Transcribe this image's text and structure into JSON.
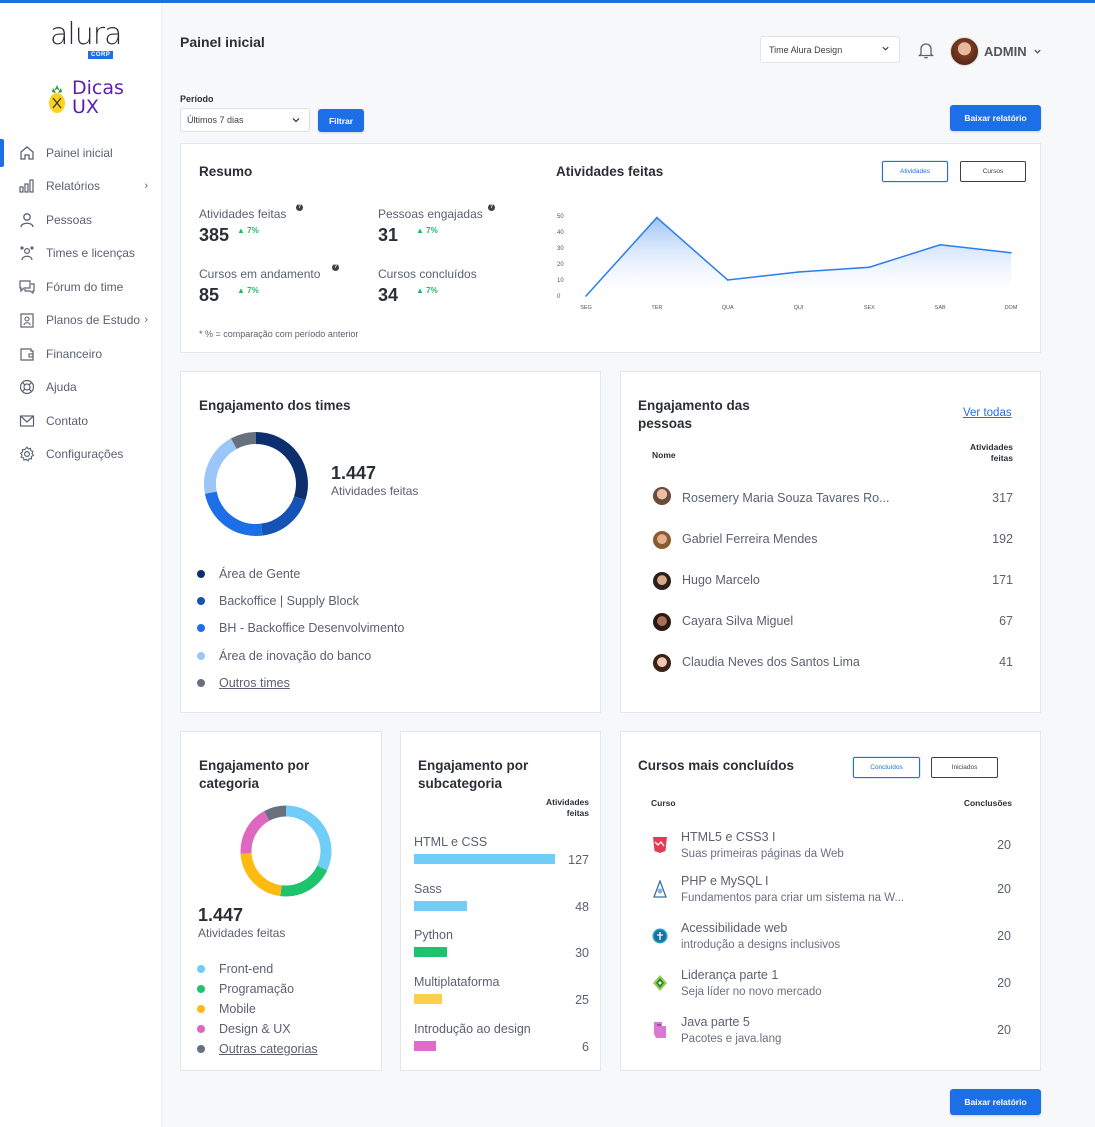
{
  "brand": {
    "logo": "alura",
    "corp": "CORP",
    "dicas": "Dicas",
    "ux": "UX"
  },
  "sidebar": {
    "items": [
      {
        "label": "Painel inicial",
        "icon": "home-icon"
      },
      {
        "label": "Relatórios",
        "icon": "bar-chart-icon",
        "chev": "›"
      },
      {
        "label": "Pessoas",
        "icon": "user-icon"
      },
      {
        "label": "Times e licenças",
        "icon": "team-icon"
      },
      {
        "label": "Fórum do time",
        "icon": "forum-icon"
      },
      {
        "label": "Planos de Estudo",
        "icon": "study-plan-icon",
        "chev": "›"
      },
      {
        "label": "Financeiro",
        "icon": "wallet-icon"
      },
      {
        "label": "Ajuda",
        "icon": "lifebuoy-icon"
      },
      {
        "label": "Contato",
        "icon": "mail-icon"
      },
      {
        "label": "Configurações",
        "icon": "gear-icon"
      }
    ]
  },
  "header": {
    "title": "Painel inicial",
    "team_select": "Time Alura Design",
    "user": "ADMIN"
  },
  "filter": {
    "label": "Período",
    "period": "Últimos 7 dias",
    "button": "Filtrar",
    "download": "Baixar relatório"
  },
  "resumo": {
    "title": "Resumo",
    "metrics": [
      {
        "label": "Atividades feitas",
        "value": "385",
        "change": "7%"
      },
      {
        "label": "Pessoas engajadas",
        "value": "31",
        "change": "7%"
      },
      {
        "label": "Cursos em andamento",
        "value": "85",
        "change": "7%"
      },
      {
        "label": "Cursos concluídos",
        "value": "34",
        "change": "7%"
      }
    ],
    "note": "* % = comparação com período anterior"
  },
  "atividades": {
    "title": "Atividades feitas",
    "toggle_on": "Atividades",
    "toggle_off": "Cursos"
  },
  "chart_data": [
    {
      "type": "area",
      "title": "Atividades feitas",
      "categories": [
        "SEG",
        "TER",
        "QUA",
        "QUI",
        "SEX",
        "SAB",
        "DOM"
      ],
      "values": [
        0,
        49,
        10,
        15,
        18,
        32,
        27
      ],
      "yticks": [
        "50",
        "40",
        "30",
        "20",
        "10",
        "0"
      ],
      "ylim": [
        0,
        50
      ],
      "color": "#2b7de9"
    },
    {
      "type": "pie",
      "title": "Engajamento dos times",
      "labels": [
        "Área de Gente",
        "Backoffice | Supply Block",
        "BH - Backoffice Desenvolvimento",
        "Área de inovação do banco",
        "Outros times"
      ],
      "values": [
        30,
        18,
        24,
        20,
        8
      ],
      "colors": [
        "#0d2f6e",
        "#1553b6",
        "#1d6fe8",
        "#9cc6f7",
        "#69707d"
      ]
    },
    {
      "type": "pie",
      "title": "Engajamento por categoria",
      "labels": [
        "Front-end",
        "Programação",
        "Mobile",
        "Design & UX",
        "Outras categorias"
      ],
      "values": [
        32,
        20,
        22,
        18,
        8
      ],
      "colors": [
        "#6fcdf7",
        "#1dc46d",
        "#fdbb12",
        "#e067c0",
        "#69707d"
      ]
    },
    {
      "type": "bar",
      "title": "Engajamento por subcategoria",
      "categories": [
        "HTML e CSS",
        "Sass",
        "Python",
        "Multiplataforma",
        "Introdução ao design"
      ],
      "values": [
        127,
        48,
        30,
        25,
        6
      ],
      "colors": [
        "#6fcdf7",
        "#6fcdf7",
        "#1dc46d",
        "#fdcf4d",
        "#de6cc9"
      ]
    }
  ],
  "teams": {
    "title": "Engajamento dos times",
    "total": "1.447",
    "total_label": "Atividades feitas",
    "legend": [
      "Área de Gente",
      "Backoffice | Supply Block",
      "BH - Backoffice Desenvolvimento",
      "Área de inovação do banco",
      "Outros times"
    ]
  },
  "people": {
    "title_line1": "Engajamento das",
    "title_line2": "pessoas",
    "link": "Ver todas",
    "col_name": "Nome",
    "col_val_1": "Atividades",
    "col_val_2": "feitas",
    "rows": [
      {
        "name": "Rosemery Maria Souza Tavares Ro...",
        "value": "317"
      },
      {
        "name": "Gabriel Ferreira Mendes",
        "value": "192"
      },
      {
        "name": "Hugo Marcelo",
        "value": "171"
      },
      {
        "name": "Cayara Silva Miguel",
        "value": "67"
      },
      {
        "name": "Claudia Neves dos Santos Lima",
        "value": "41"
      }
    ]
  },
  "categoria": {
    "title_line1": "Engajamento por",
    "title_line2": "categoria",
    "total": "1.447",
    "total_label": "Atividades feitas",
    "legend": [
      "Front-end",
      "Programação",
      "Mobile",
      "Design & UX",
      "Outras categorias"
    ]
  },
  "subcategoria": {
    "title_line1": "Engajamento por",
    "title_line2": "subcategoria",
    "col_1": "Atividades",
    "col_2": "feitas"
  },
  "cursos": {
    "title": "Cursos mais concluídos",
    "toggle_on": "Concluídos",
    "toggle_off": "Iniciados",
    "col_course": "Curso",
    "col_val": "Conclusões",
    "rows": [
      {
        "title": "HTML5 e CSS3 I",
        "sub": "Suas primeiras páginas da Web",
        "value": "20"
      },
      {
        "title": "PHP e MySQL I",
        "sub": "Fundamentos para criar um sistema na W...",
        "value": "20"
      },
      {
        "title": "Acessibilidade web",
        "sub": "introdução a designs inclusivos",
        "value": "20"
      },
      {
        "title": "Liderança parte 1",
        "sub": "Seja líder no novo mercado",
        "value": "20"
      },
      {
        "title": "Java parte 5",
        "sub": "Pacotes e java.lang",
        "value": "20"
      }
    ]
  }
}
